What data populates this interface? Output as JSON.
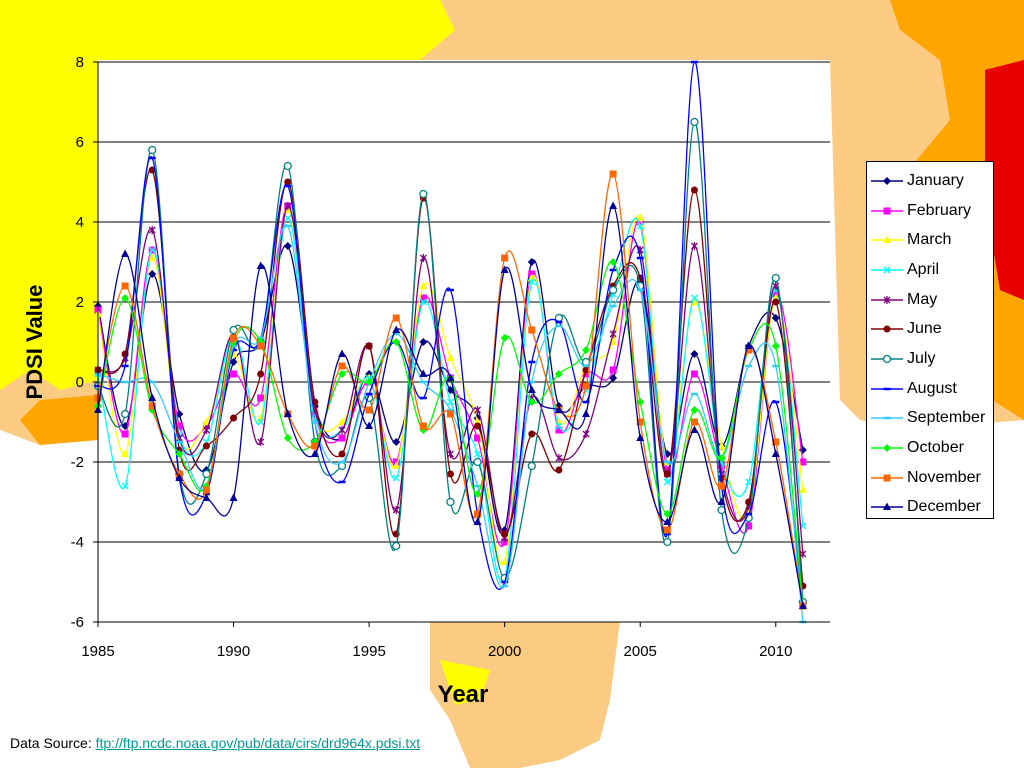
{
  "chart_data": {
    "type": "line",
    "title": "",
    "xlabel": "Year",
    "ylabel": "PDSI Value",
    "xlim": [
      1985,
      2012
    ],
    "ylim": [
      -6,
      8
    ],
    "x_ticks": [
      1985,
      1990,
      1995,
      2000,
      2005,
      2010
    ],
    "y_ticks": [
      -6,
      -4,
      -2,
      0,
      2,
      4,
      6,
      8
    ],
    "grid": "horizontal",
    "legend_position": "right",
    "x": [
      1985,
      1986,
      1987,
      1988,
      1989,
      1990,
      1991,
      1992,
      1993,
      1994,
      1995,
      1996,
      1997,
      1998,
      1999,
      2000,
      2001,
      2002,
      2003,
      2004,
      2005,
      2006,
      2007,
      2008,
      2009,
      2010,
      2011
    ],
    "series": [
      {
        "name": "January",
        "color": "#000080",
        "marker": "diamond",
        "values": [
          1.9,
          -1.1,
          2.7,
          -0.8,
          -2.2,
          0.5,
          1.0,
          3.4,
          -0.6,
          -1.4,
          0.2,
          -1.5,
          1.0,
          -0.2,
          -0.9,
          -3.7,
          3.0,
          -0.6,
          -0.1,
          0.1,
          2.5,
          -1.8,
          0.7,
          -1.6,
          0.9,
          1.6,
          -1.7
        ]
      },
      {
        "name": "February",
        "color": "#ff00ff",
        "marker": "square",
        "values": [
          1.8,
          -1.3,
          3.3,
          -1.1,
          -1.1,
          0.2,
          -0.4,
          4.4,
          -0.8,
          -1.4,
          0.0,
          -2.0,
          2.1,
          0.1,
          -1.4,
          -4.0,
          2.7,
          -1.2,
          0.2,
          0.3,
          4.0,
          -2.2,
          0.2,
          -2.1,
          -3.6,
          2.2,
          -2.0
        ]
      },
      {
        "name": "March",
        "color": "#ffff00",
        "marker": "triangle",
        "values": [
          1.7,
          -1.8,
          3.1,
          -1.4,
          -1.0,
          0.7,
          -0.9,
          4.3,
          -0.7,
          -1.0,
          0.1,
          -2.1,
          2.4,
          0.6,
          -1.0,
          -4.5,
          2.6,
          -1.0,
          0.4,
          1.0,
          4.1,
          -2.0,
          2.0,
          -1.6,
          -3.3,
          2.1,
          -2.7
        ]
      },
      {
        "name": "April",
        "color": "#00ffff",
        "marker": "x",
        "values": [
          0.2,
          -2.6,
          3.3,
          -1.3,
          -1.5,
          1.2,
          -1.0,
          4.1,
          -0.8,
          -1.2,
          0.1,
          -2.4,
          2.0,
          -0.5,
          -1.8,
          -4.9,
          2.5,
          -1.1,
          -0.2,
          2.2,
          3.9,
          -2.5,
          2.1,
          -2.0,
          -2.5,
          2.3,
          -3.6
        ]
      },
      {
        "name": "May",
        "color": "#800080",
        "marker": "star",
        "values": [
          0.3,
          0.6,
          3.8,
          -1.4,
          -1.2,
          1.2,
          -1.5,
          4.4,
          -0.7,
          -1.2,
          0.9,
          -3.2,
          3.1,
          -1.8,
          -0.7,
          -3.9,
          -0.4,
          -1.9,
          -1.3,
          1.2,
          3.3,
          -2.3,
          3.4,
          -2.3,
          -3.1,
          2.4,
          -4.3
        ]
      },
      {
        "name": "June",
        "color": "#800000",
        "marker": "circle",
        "values": [
          0.3,
          0.7,
          5.3,
          -1.7,
          -1.6,
          -0.9,
          0.2,
          5.0,
          -0.5,
          -1.8,
          0.9,
          -3.8,
          4.6,
          -2.3,
          -1.1,
          -3.8,
          -1.3,
          -2.2,
          0.3,
          2.4,
          2.6,
          -2.3,
          4.8,
          -2.4,
          -3.0,
          2.0,
          -5.1
        ]
      },
      {
        "name": "July",
        "color": "#008080",
        "marker": "ring",
        "values": [
          -0.1,
          -0.8,
          5.8,
          -2.3,
          -2.3,
          1.3,
          1.0,
          5.4,
          -1.5,
          -2.1,
          -0.4,
          -4.1,
          4.7,
          -3.0,
          -2.0,
          -4.9,
          -2.1,
          1.6,
          0.5,
          2.3,
          2.4,
          -4.0,
          6.5,
          -3.2,
          -3.4,
          2.6,
          -5.5
        ]
      },
      {
        "name": "August",
        "color": "#0000ff",
        "marker": "dash",
        "values": [
          -0.1,
          0.4,
          5.6,
          -2.4,
          -2.8,
          0.8,
          1.1,
          4.9,
          -1.0,
          -2.5,
          -0.3,
          1.0,
          -0.4,
          2.3,
          -3.3,
          -5.0,
          0.5,
          1.5,
          -0.5,
          2.8,
          3.1,
          -3.8,
          8.0,
          -2.6,
          -3.3,
          -0.5,
          -5.6
        ]
      },
      {
        "name": "September",
        "color": "#33ccff",
        "marker": "dash",
        "values": [
          0.2,
          0.0,
          0.0,
          -1.5,
          -2.6,
          0.9,
          1.1,
          3.9,
          -1.0,
          -2.0,
          0.0,
          1.2,
          0.0,
          -0.7,
          -2.6,
          -5.1,
          0.0,
          1.4,
          0.4,
          1.9,
          2.3,
          -2.0,
          -0.3,
          -1.9,
          0.4,
          0.4,
          -6.0
        ]
      },
      {
        "name": "October",
        "color": "#00ff00",
        "marker": "diamond",
        "values": [
          -0.6,
          2.1,
          -0.7,
          -1.8,
          -2.6,
          1.0,
          1.0,
          -1.4,
          -1.5,
          0.2,
          0.0,
          1.0,
          -1.2,
          0.1,
          -2.8,
          1.1,
          -0.5,
          0.2,
          0.8,
          3.0,
          -0.5,
          -3.3,
          -0.7,
          -1.9,
          0.8,
          0.9,
          -5.6
        ]
      },
      {
        "name": "November",
        "color": "#ff6600",
        "marker": "square",
        "values": [
          -0.4,
          2.4,
          -0.6,
          -2.3,
          -2.7,
          1.1,
          0.9,
          -0.8,
          -1.6,
          0.4,
          -0.7,
          1.6,
          -1.1,
          -0.8,
          -3.3,
          3.1,
          1.3,
          -0.7,
          -0.1,
          5.2,
          -1.0,
          -3.7,
          -1.0,
          -2.6,
          0.8,
          -1.5,
          -5.6
        ]
      },
      {
        "name": "December",
        "color": "#000099",
        "marker": "triangle",
        "values": [
          -0.7,
          3.2,
          -0.4,
          -2.4,
          -2.9,
          -2.9,
          2.9,
          -0.8,
          -1.8,
          0.7,
          -1.1,
          1.3,
          0.2,
          0.1,
          -3.5,
          2.8,
          -0.2,
          -0.7,
          -0.8,
          4.4,
          -1.4,
          -3.5,
          -1.2,
          -3.0,
          0.9,
          -1.8,
          -5.6
        ]
      }
    ]
  },
  "source": {
    "label": "Data Source:",
    "url_text": "ftp://ftp.ncdc.noaa.gov/pub/data/cirs/drd964x.pdsi.txt"
  }
}
